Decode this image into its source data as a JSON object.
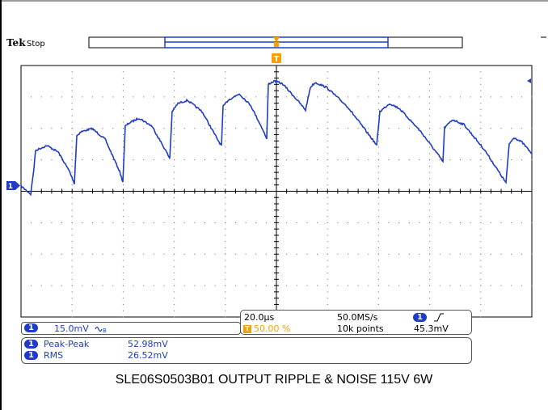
{
  "brand": "Tek",
  "acq_state": "Stop",
  "trigger_marker": "T",
  "channel_marker": "1",
  "channel_badge": "1",
  "colors": {
    "trace": "#1f3cc8",
    "trigger": "#f5a000",
    "grid": "#555555",
    "frame": "#000000"
  },
  "channel": {
    "scale": "15.0mV",
    "coupling_icon": "bandwidth-limit-icon"
  },
  "timebase": {
    "horizontal_scale": "20.0µs",
    "trigger_position": "50.00 %",
    "sample_rate": "50.0MS/s",
    "record_length": "10k points"
  },
  "trigger": {
    "slope_icon": "rising-edge-icon",
    "level": "45.3mV"
  },
  "measurements": [
    {
      "label": "Peak-Peak",
      "value": "52.98mV"
    },
    {
      "label": "RMS",
      "value": "26.52mV"
    }
  ],
  "caption": "SLE06S0503B01 OUTPUT RIPPLE & NOISE 115V 6W"
}
